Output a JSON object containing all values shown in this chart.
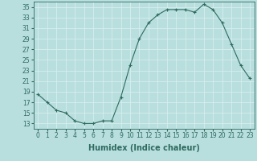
{
  "x": [
    0,
    1,
    2,
    3,
    4,
    5,
    6,
    7,
    8,
    9,
    10,
    11,
    12,
    13,
    14,
    15,
    16,
    17,
    18,
    19,
    20,
    21,
    22,
    23
  ],
  "y": [
    18.5,
    17,
    15.5,
    15,
    13.5,
    13,
    13,
    13.5,
    13.5,
    18,
    24,
    29,
    32,
    33.5,
    34.5,
    34.5,
    34.5,
    34,
    35.5,
    34.5,
    32,
    28,
    24,
    21.5
  ],
  "xlabel": "Humidex (Indice chaleur)",
  "xlim": [
    -0.5,
    23.5
  ],
  "ylim": [
    12,
    36
  ],
  "yticks": [
    13,
    15,
    17,
    19,
    21,
    23,
    25,
    27,
    29,
    31,
    33,
    35
  ],
  "xticks": [
    0,
    1,
    2,
    3,
    4,
    5,
    6,
    7,
    8,
    9,
    10,
    11,
    12,
    13,
    14,
    15,
    16,
    17,
    18,
    19,
    20,
    21,
    22,
    23
  ],
  "line_color": "#2e6b5e",
  "marker": "+",
  "bg_color": "#b8dede",
  "grid_color": "#d8eeee",
  "tick_label_fontsize": 5.5,
  "xlabel_fontsize": 7
}
